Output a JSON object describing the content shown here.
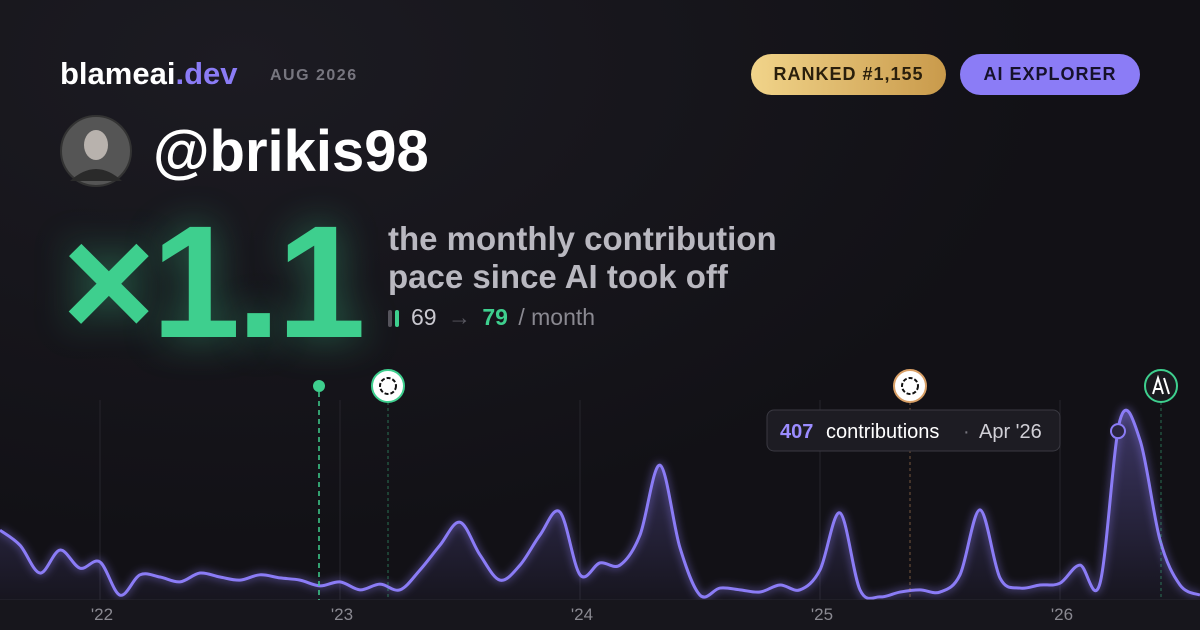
{
  "header": {
    "brand": "blameai",
    "brand_tld": ".dev",
    "date": "AUG 2026",
    "rank_badge": "RANKED #1,155",
    "tier_badge": "AI EXPLORER",
    "handle": "@brikis98"
  },
  "headline": {
    "multiplier": "×1.1",
    "line1": "the monthly contribution",
    "line2": "pace since AI took off",
    "before": 69,
    "arrow": "→",
    "after": 79,
    "unit": "/ month"
  },
  "chart_data": {
    "type": "line",
    "categories": [
      null,
      null,
      null,
      null,
      null,
      "'22",
      null,
      null,
      null,
      null,
      null,
      null,
      null,
      null,
      null,
      null,
      null,
      "'23",
      null,
      null,
      null,
      null,
      null,
      null,
      null,
      null,
      null,
      null,
      null,
      "'24",
      null,
      null,
      null,
      null,
      null,
      null,
      null,
      null,
      null,
      null,
      null,
      "'25",
      null,
      null,
      null,
      null,
      null,
      null,
      null,
      null,
      null,
      null,
      null,
      "'26",
      null,
      null,
      null,
      null,
      null,
      null,
      null
    ],
    "series": [
      {
        "name": "contributions",
        "color": "#8b7cf6",
        "values": [
          158,
          124,
          61,
          113,
          72,
          86,
          11,
          57,
          52,
          41,
          61,
          52,
          45,
          57,
          50,
          45,
          32,
          41,
          23,
          36,
          23,
          68,
          124,
          176,
          102,
          45,
          79,
          147,
          199,
          57,
          84,
          79,
          147,
          305,
          118,
          11,
          27,
          23,
          18,
          34,
          23,
          68,
          197,
          23,
          7,
          18,
          23,
          18,
          57,
          204,
          50,
          27,
          34,
          38,
          79,
          38,
          407,
          362,
          136,
          34,
          11
        ]
      }
    ],
    "ylim": [
      0,
      430
    ],
    "tooltip": {
      "unit": "contributions",
      "separator": "·",
      "date": "Apr '26"
    }
  }
}
